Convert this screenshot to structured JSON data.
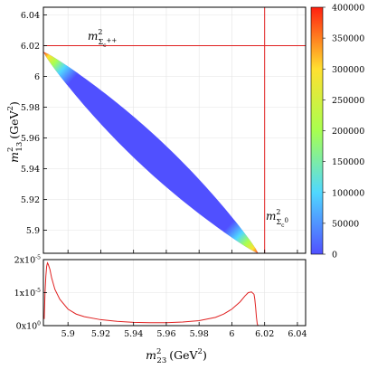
{
  "chart_data": [
    {
      "type": "heatmap",
      "xlabel": {
        "base": "m",
        "sup": "2",
        "sub": "23",
        "unit": "(GeV",
        "unit_sup": "2",
        "unit_close": ")"
      },
      "ylabel": {
        "base": "m",
        "sup": "2",
        "sub": "13",
        "unit": "(GeV",
        "unit_sup": "2",
        "unit_close": ")"
      },
      "xlim": [
        5.885,
        6.045
      ],
      "ylim": [
        5.885,
        6.045
      ],
      "x_ticks": [
        5.9,
        5.92,
        5.94,
        5.96,
        5.98,
        6,
        6.02,
        6.04
      ],
      "x_tick_labels": [
        "5.9",
        "5.92",
        "5.94",
        "5.96",
        "5.98",
        "6",
        "6.02",
        "6.04"
      ],
      "y_ticks": [
        5.9,
        5.92,
        5.94,
        5.96,
        5.98,
        6,
        6.02,
        6.04
      ],
      "y_tick_labels": [
        "5.9",
        "5.92",
        "5.94",
        "5.96",
        "5.98",
        "6",
        "6.02",
        "6.04"
      ],
      "grid": true,
      "band": {
        "description_points": [
          [
            5.885,
            6.016
          ],
          [
            6.016,
            5.885
          ]
        ],
        "high_value_ends": true
      },
      "threshold_lines": [
        {
          "orientation": "horizontal",
          "value": 6.02,
          "label": {
            "base": "m",
            "sup": "2",
            "sub": "Σ",
            "subsub": "c",
            "subsup": "++"
          }
        },
        {
          "orientation": "vertical",
          "value": 6.02,
          "label": {
            "base": "m",
            "sup": "2",
            "sub": "Σ",
            "subsub": "c",
            "subsup": "0"
          }
        }
      ],
      "colorbar": {
        "min": 0,
        "max": 400000,
        "ticks": [
          0,
          50000,
          100000,
          150000,
          200000,
          250000,
          300000,
          350000,
          400000
        ],
        "tick_labels": [
          "0",
          "50000",
          "100000",
          "150000",
          "200000",
          "250000",
          "300000",
          "350000",
          "400000"
        ],
        "colors": [
          "#5050ff",
          "#50d8ff",
          "#a8ff50",
          "#ffe030",
          "#ff2010"
        ]
      },
      "colors": {
        "threshold": "#e02020",
        "axis": "#000000"
      }
    },
    {
      "type": "line",
      "xlim": [
        5.885,
        6.045
      ],
      "ylim": [
        0,
        2e-05
      ],
      "y_tick_labels": [
        "0x10",
        "1x10",
        "2x10"
      ],
      "y_tick_exps": [
        "0",
        "-5",
        "-5"
      ],
      "y_ticks": [
        0,
        1e-05,
        2e-05
      ],
      "series": [
        {
          "x": [
            5.8855,
            5.886,
            5.8865,
            5.887,
            5.8875,
            5.888,
            5.889,
            5.89,
            5.892,
            5.895,
            5.9,
            5.905,
            5.91,
            5.92,
            5.93,
            5.94,
            5.95,
            5.96,
            5.97,
            5.98,
            5.99,
            5.995,
            6.0,
            6.005,
            6.008,
            6.01,
            6.012,
            6.0135,
            6.014,
            6.0145,
            6.015,
            6.0155,
            6.016
          ],
          "y": [
            2e-06,
            1e-05,
            1.5e-05,
            1.8e-05,
            1.9e-05,
            1.85e-05,
            1.7e-05,
            1.45e-05,
            1.1e-05,
            8e-06,
            5e-06,
            3.5e-06,
            2.7e-06,
            1.8e-06,
            1.3e-06,
            1e-06,
            9e-07,
            9e-07,
            1.1e-06,
            1.5e-06,
            2.5e-06,
            3.5e-06,
            5e-06,
            7.2e-06,
            9e-06,
            1e-05,
            1.02e-05,
            9.5e-06,
            8e-06,
            5.5e-06,
            2.5e-06,
            5e-07,
            0.0
          ]
        }
      ],
      "colors": {
        "line": "#e02020"
      }
    }
  ]
}
